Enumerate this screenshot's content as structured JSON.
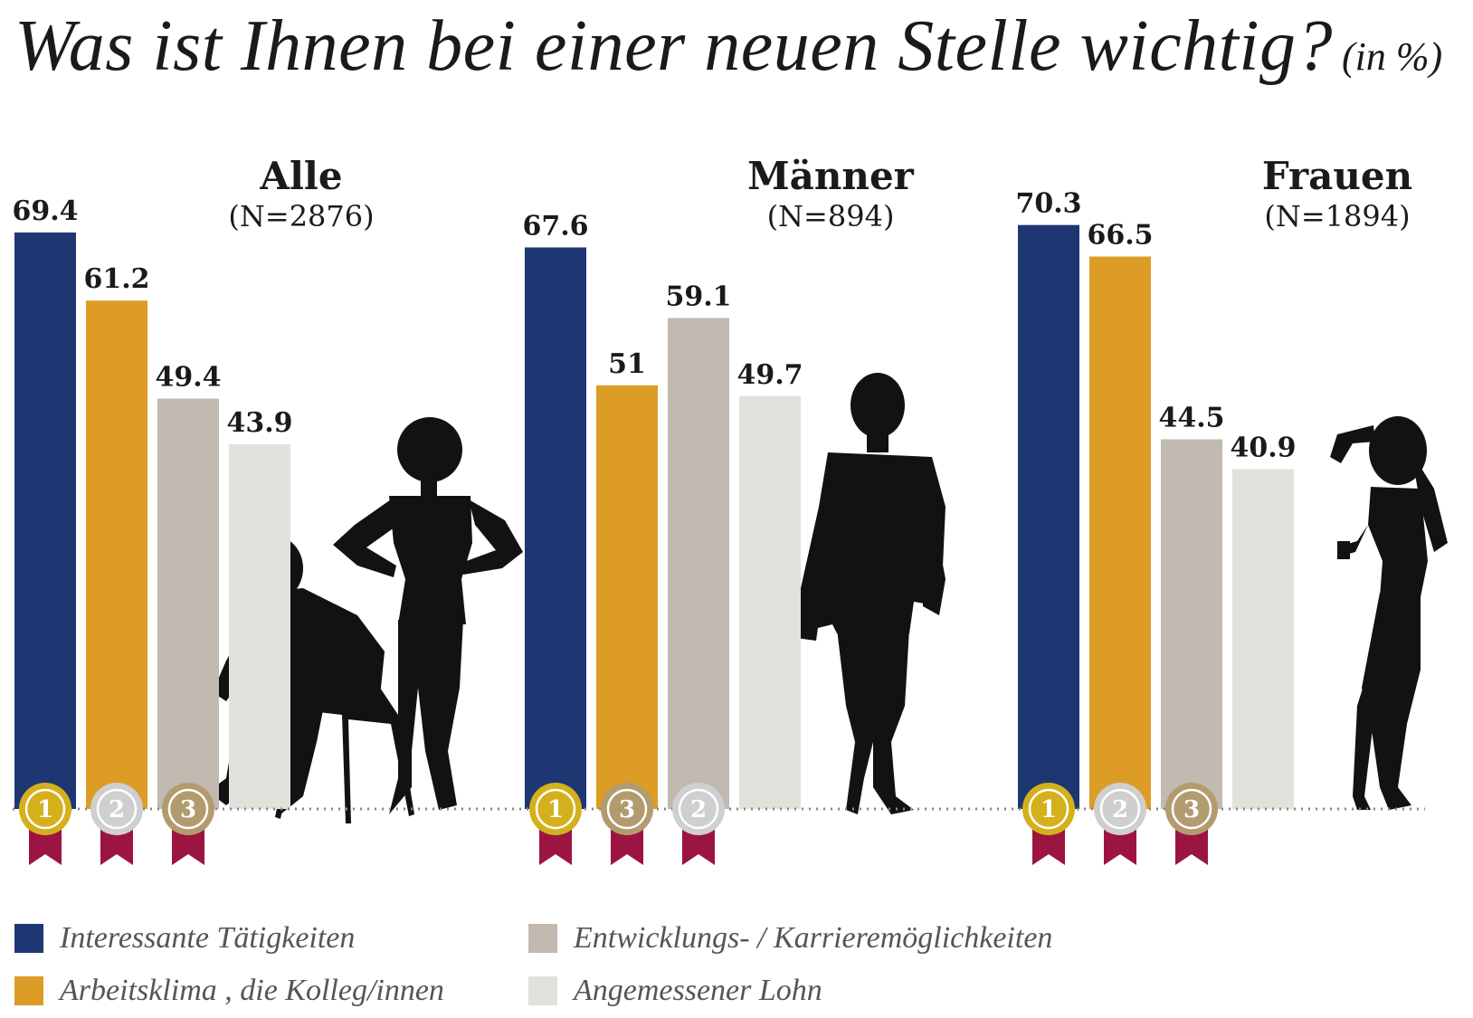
{
  "header": {
    "title": "Was ist Ihnen bei einer neuen Stelle wichtig?",
    "unit": "(in %)"
  },
  "colors": {
    "Interessante Tätigkeiten": "#1e3672",
    "Arbeitsklima , die Kolleg/innen": "#dc9c26",
    "Entwicklungs- / Karrieremöglichkeiten": "#c2b9b0",
    "Angemessener Lohn": "#e3e1dc",
    "gold": "#d4b11c",
    "silver": "#cfcfcf",
    "bronze": "#b39b70",
    "ribbon": "#9c1441",
    "silhouette": "#121212"
  },
  "legend": [
    {
      "label": "Interessante Tätigkeiten",
      "color": "#1e3672"
    },
    {
      "label": "Arbeitsklima , die Kolleg/innen",
      "color": "#dc9c26"
    },
    {
      "label": "Entwicklungs- / Karrieremöglichkeiten",
      "color": "#c2b9b0"
    },
    {
      "label": "Angemessener Lohn",
      "color": "#e3e1dc"
    }
  ],
  "chart_data": {
    "type": "bar",
    "title": "Was ist Ihnen bei einer neuen Stelle wichtig?",
    "unit": "(in %)",
    "categories": [
      "Interessante Tätigkeiten",
      "Arbeitsklima , die Kolleg/innen",
      "Entwicklungs- / Karrieremöglichkeiten",
      "Angemessener Lohn"
    ],
    "ylim": [
      0,
      100
    ],
    "grid": false,
    "legend_position": "bottom",
    "groups": [
      {
        "name": "Alle",
        "n": "(N=2876)",
        "values": [
          69.4,
          61.2,
          49.4,
          43.9
        ],
        "labels": [
          "69.4",
          "61.2",
          "49.4",
          "43.9"
        ],
        "ranks": [
          1,
          2,
          3,
          null
        ]
      },
      {
        "name": "Männer",
        "n": "(N=894)",
        "values": [
          67.6,
          51,
          59.1,
          49.7
        ],
        "labels": [
          "67.6",
          "51",
          "59.1",
          "49.7"
        ],
        "ranks": [
          1,
          3,
          2,
          null
        ]
      },
      {
        "name": "Frauen",
        "n": "(N=1894)",
        "values": [
          70.3,
          66.5,
          44.5,
          40.9
        ],
        "labels": [
          "70.3",
          "66.5",
          "44.5",
          "40.9"
        ],
        "ranks": [
          1,
          2,
          3,
          null
        ]
      }
    ]
  }
}
